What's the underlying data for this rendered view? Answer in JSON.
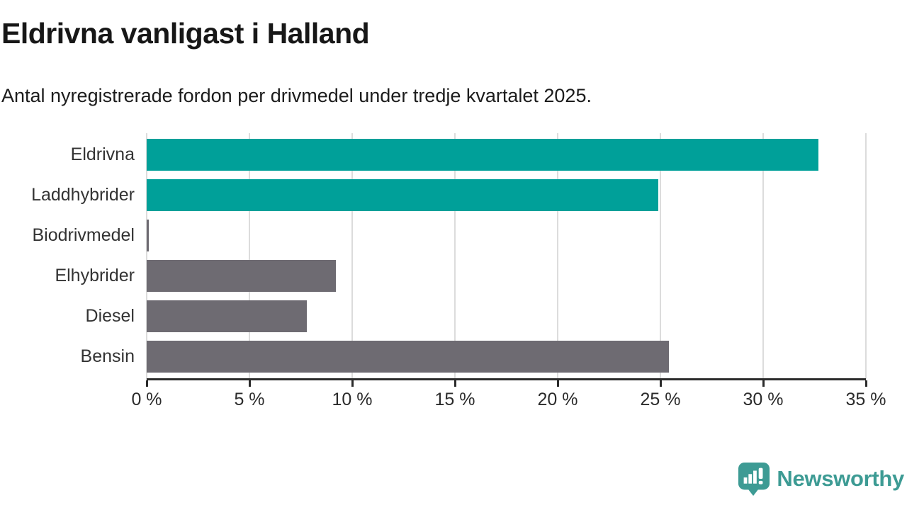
{
  "header": {
    "title": "Eldrivna vanligast i Halland",
    "subtitle": "Antal nyregistrerade fordon per drivmedel under tredje kvartalet 2025."
  },
  "chart_data": {
    "type": "bar",
    "orientation": "horizontal",
    "title": "Eldrivna vanligast i Halland",
    "categories": [
      "Eldrivna",
      "Laddhybrider",
      "Biodrivmedel",
      "Elhybrider",
      "Diesel",
      "Bensin"
    ],
    "values": [
      32.7,
      24.9,
      0.1,
      9.2,
      7.8,
      25.4
    ],
    "unit": "%",
    "xlim": [
      0,
      35
    ],
    "x_ticks": [
      0,
      5,
      10,
      15,
      20,
      25,
      30,
      35
    ],
    "x_tick_labels": [
      "0 %",
      "5 %",
      "10 %",
      "15 %",
      "20 %",
      "25 %",
      "30 %",
      "35 %"
    ],
    "bar_colors": [
      "#00a099",
      "#00a099",
      "#6e6b72",
      "#6e6b72",
      "#6e6b72",
      "#6e6b72"
    ],
    "grid": true,
    "legend": false
  },
  "branding": {
    "logo_text": "Newsworthy",
    "logo_color": "#3d9b94"
  },
  "colors": {
    "teal": "#00a099",
    "gray": "#6e6b72",
    "axis": "#2b2b2b",
    "gridline": "#dcdcdc",
    "text": "#333333"
  }
}
